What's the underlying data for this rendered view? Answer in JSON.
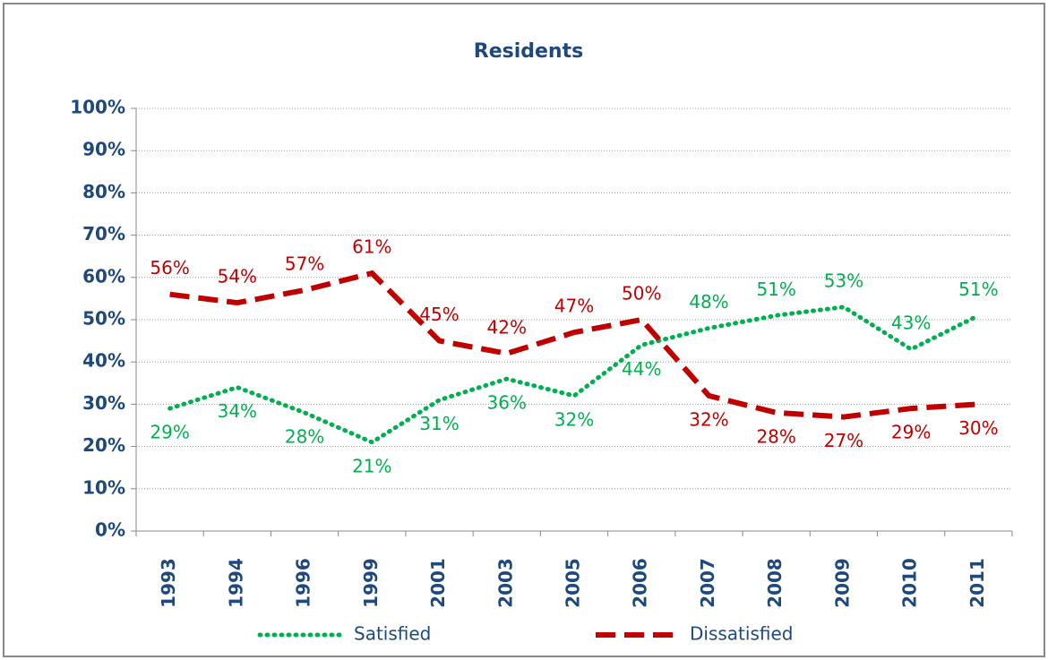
{
  "chart_data": {
    "type": "line",
    "title": "Residents",
    "categories": [
      "1993",
      "1994",
      "1996",
      "1999",
      "2001",
      "2003",
      "2005",
      "2006",
      "2007",
      "2008",
      "2009",
      "2010",
      "2011"
    ],
    "series": [
      {
        "name": "Satisfied",
        "color": "#00b050",
        "style": "dotted",
        "values": [
          29,
          34,
          28,
          21,
          31,
          36,
          32,
          44,
          48,
          51,
          53,
          43,
          51
        ],
        "value_labels": [
          "29%",
          "34%",
          "28%",
          "21%",
          "31%",
          "36%",
          "32%",
          "44%",
          "48%",
          "51%",
          "53%",
          "43%",
          "51%"
        ]
      },
      {
        "name": "Dissatisfied",
        "color": "#c00000",
        "style": "dashed",
        "values": [
          56,
          54,
          57,
          61,
          45,
          42,
          47,
          50,
          32,
          28,
          27,
          29,
          30
        ],
        "value_labels": [
          "56%",
          "54%",
          "57%",
          "61%",
          "45%",
          "42%",
          "47%",
          "50%",
          "32%",
          "28%",
          "27%",
          "29%",
          "30%"
        ]
      }
    ],
    "ylim": [
      0,
      100
    ],
    "yticks": [
      {
        "value": 0,
        "label": "0%"
      },
      {
        "value": 10,
        "label": "10%"
      },
      {
        "value": 20,
        "label": "20%"
      },
      {
        "value": 30,
        "label": "30%"
      },
      {
        "value": 40,
        "label": "40%"
      },
      {
        "value": 50,
        "label": "50%"
      },
      {
        "value": 60,
        "label": "60%"
      },
      {
        "value": 70,
        "label": "70%"
      },
      {
        "value": 80,
        "label": "80%"
      },
      {
        "value": 90,
        "label": "90%"
      },
      {
        "value": 100,
        "label": "100%"
      }
    ],
    "grid": true,
    "legend": "bottom"
  }
}
